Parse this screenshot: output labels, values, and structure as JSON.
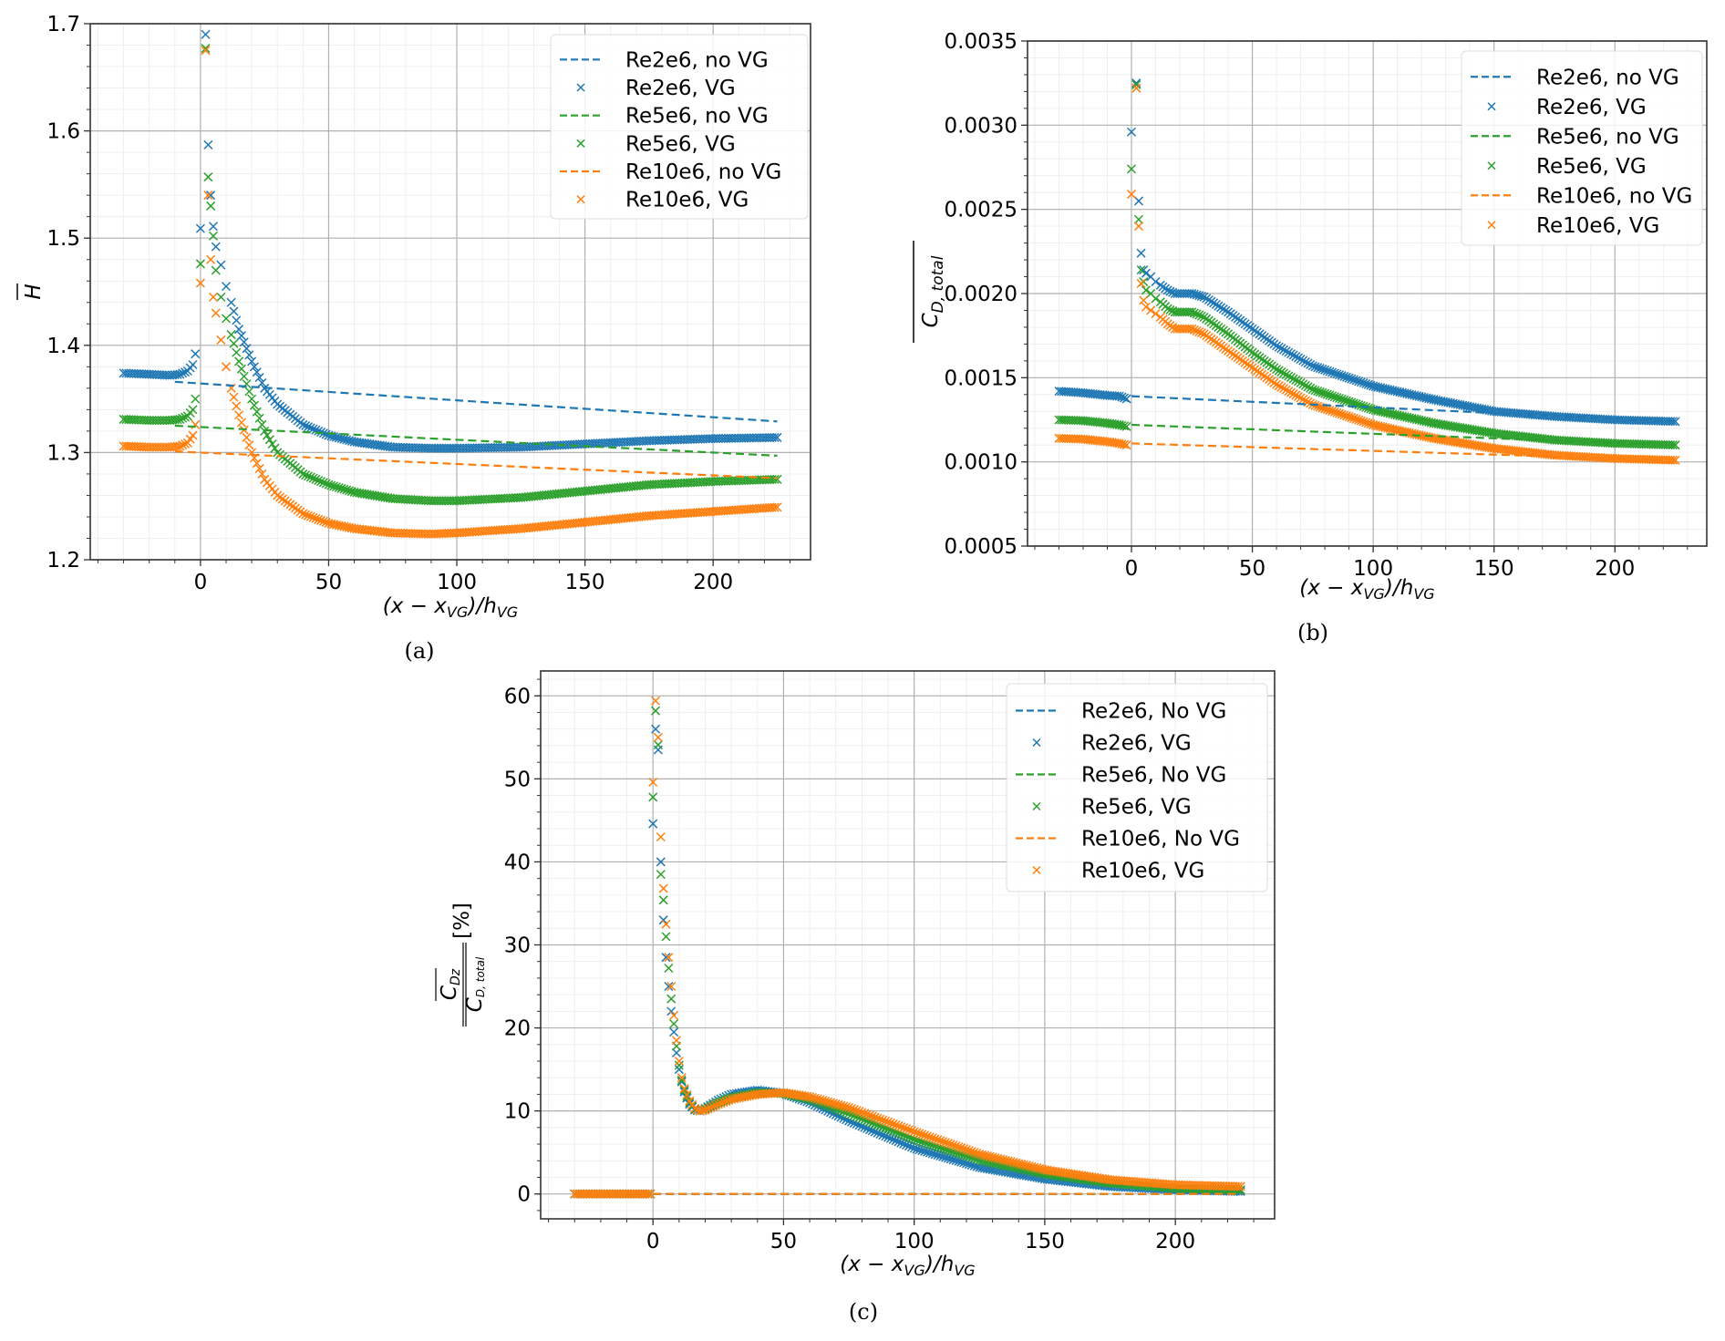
{
  "figure": {
    "colors": {
      "Re2e6": "#1f77b4",
      "Re5e6": "#2ca02c",
      "Re10e6": "#ff7f0e"
    }
  },
  "chart_data": [
    {
      "id": "a",
      "type": "scatter",
      "caption": "(a)",
      "title": "",
      "xlabel": "(x − x_VG)/h_VG",
      "ylabel": "H̄",
      "xlim": [
        -43,
        238
      ],
      "ylim": [
        1.2,
        1.7
      ],
      "xticks": [
        0,
        50,
        100,
        150,
        200
      ],
      "yticks": [
        1.2,
        1.3,
        1.4,
        1.5,
        1.6,
        1.7
      ],
      "ytick_labels": [
        "1.2",
        "1.3",
        "1.4",
        "1.5",
        "1.6",
        "1.7"
      ],
      "grid": true,
      "legend_position": "top-right",
      "series": [
        {
          "name": "Re2e6, no VG",
          "style": "dashed",
          "color_key": "Re2e6",
          "x": [
            -10,
            225
          ],
          "y": [
            1.366,
            1.329
          ]
        },
        {
          "name": "Re2e6, VG",
          "style": "x-marker",
          "color_key": "Re2e6",
          "x": [
            -30,
            -20,
            -12,
            -8,
            -5,
            -3,
            -2,
            0,
            2,
            3,
            4,
            5,
            6,
            8,
            10,
            12,
            15,
            20,
            25,
            30,
            40,
            50,
            60,
            75,
            90,
            100,
            125,
            150,
            175,
            200,
            225
          ],
          "y": [
            1.374,
            1.373,
            1.372,
            1.373,
            1.376,
            1.382,
            1.392,
            1.509,
            1.69,
            1.587,
            1.54,
            1.511,
            1.492,
            1.475,
            1.455,
            1.44,
            1.415,
            1.385,
            1.36,
            1.345,
            1.326,
            1.316,
            1.31,
            1.305,
            1.304,
            1.304,
            1.305,
            1.308,
            1.311,
            1.313,
            1.314
          ]
        },
        {
          "name": "Re5e6, no VG",
          "style": "dashed",
          "color_key": "Re5e6",
          "x": [
            -10,
            225
          ],
          "y": [
            1.325,
            1.297
          ]
        },
        {
          "name": "Re5e6, VG",
          "style": "x-marker",
          "color_key": "Re5e6",
          "x": [
            -30,
            -20,
            -12,
            -8,
            -5,
            -3,
            -2,
            0,
            2,
            3,
            4,
            5,
            6,
            8,
            10,
            12,
            15,
            20,
            25,
            30,
            40,
            50,
            60,
            75,
            90,
            100,
            125,
            150,
            175,
            200,
            225
          ],
          "y": [
            1.331,
            1.33,
            1.33,
            1.331,
            1.334,
            1.34,
            1.35,
            1.476,
            1.677,
            1.557,
            1.53,
            1.502,
            1.47,
            1.445,
            1.425,
            1.41,
            1.385,
            1.35,
            1.32,
            1.3,
            1.28,
            1.27,
            1.263,
            1.257,
            1.255,
            1.255,
            1.258,
            1.264,
            1.27,
            1.273,
            1.275
          ]
        },
        {
          "name": "Re10e6, no VG",
          "style": "dashed",
          "color_key": "Re10e6",
          "x": [
            -10,
            225
          ],
          "y": [
            1.301,
            1.276
          ]
        },
        {
          "name": "Re10e6, VG",
          "style": "x-marker",
          "color_key": "Re10e6",
          "x": [
            -30,
            -20,
            -12,
            -8,
            -5,
            -3,
            -2,
            0,
            2,
            3,
            4,
            5,
            6,
            8,
            10,
            12,
            15,
            20,
            25,
            30,
            40,
            50,
            60,
            75,
            90,
            100,
            125,
            150,
            175,
            200,
            225
          ],
          "y": [
            1.306,
            1.305,
            1.305,
            1.306,
            1.309,
            1.316,
            1.326,
            1.458,
            1.675,
            1.54,
            1.48,
            1.445,
            1.43,
            1.405,
            1.38,
            1.36,
            1.335,
            1.3,
            1.275,
            1.26,
            1.243,
            1.234,
            1.229,
            1.225,
            1.224,
            1.225,
            1.229,
            1.235,
            1.241,
            1.245,
            1.249
          ]
        }
      ]
    },
    {
      "id": "b",
      "type": "scatter",
      "caption": "(b)",
      "title": "",
      "xlabel": "(x − x_VG)/h_VG",
      "ylabel": "C̄_D,total",
      "xlim": [
        -43,
        238
      ],
      "ylim": [
        0.0005,
        0.0035
      ],
      "xticks": [
        0,
        50,
        100,
        150,
        200
      ],
      "yticks": [
        0.0005,
        0.001,
        0.0015,
        0.002,
        0.0025,
        0.003,
        0.0035
      ],
      "ytick_labels": [
        "0.0005",
        "0.0010",
        "0.0015",
        "0.0020",
        "0.0025",
        "0.0030",
        "0.0035"
      ],
      "grid": true,
      "legend_position": "top-right",
      "series": [
        {
          "name": "Re2e6, no VG",
          "style": "dashed",
          "color_key": "Re2e6",
          "x": [
            0,
            225
          ],
          "y": [
            0.00139,
            0.00124
          ]
        },
        {
          "name": "Re2e6, VG",
          "style": "x-marker",
          "color_key": "Re2e6",
          "x": [
            -30,
            -20,
            -10,
            -5,
            -2,
            0,
            2,
            3,
            4,
            5,
            6,
            8,
            10,
            12,
            15,
            18,
            20,
            25,
            30,
            40,
            50,
            60,
            75,
            100,
            125,
            150,
            175,
            200,
            225
          ],
          "y": [
            0.00142,
            0.00141,
            0.001395,
            0.00139,
            0.001375,
            0.00296,
            0.00325,
            0.00255,
            0.00224,
            0.00214,
            0.00212,
            0.0021,
            0.00207,
            0.00205,
            0.00202,
            0.002,
            0.002,
            0.002,
            0.00198,
            0.00189,
            0.00179,
            0.00169,
            0.00157,
            0.00145,
            0.00137,
            0.0013,
            0.00127,
            0.00125,
            0.00124
          ]
        },
        {
          "name": "Re5e6, no VG",
          "style": "dashed",
          "color_key": "Re5e6",
          "x": [
            0,
            225
          ],
          "y": [
            0.00122,
            0.0011
          ]
        },
        {
          "name": "Re5e6, VG",
          "style": "x-marker",
          "color_key": "Re5e6",
          "x": [
            -30,
            -20,
            -10,
            -5,
            -2,
            0,
            2,
            3,
            4,
            5,
            6,
            8,
            10,
            12,
            15,
            18,
            20,
            25,
            30,
            40,
            50,
            60,
            75,
            100,
            125,
            150,
            175,
            200,
            225
          ],
          "y": [
            0.00125,
            0.001245,
            0.00123,
            0.00122,
            0.00121,
            0.00274,
            0.00324,
            0.00244,
            0.00214,
            0.00207,
            0.00202,
            0.002,
            0.00197,
            0.00195,
            0.00191,
            0.00189,
            0.00189,
            0.00189,
            0.00186,
            0.00176,
            0.00165,
            0.00155,
            0.00143,
            0.00131,
            0.00123,
            0.00117,
            0.00113,
            0.00111,
            0.0011
          ]
        },
        {
          "name": "Re10e6, no VG",
          "style": "dashed",
          "color_key": "Re10e6",
          "x": [
            0,
            225
          ],
          "y": [
            0.00111,
            0.00101
          ]
        },
        {
          "name": "Re10e6, VG",
          "style": "x-marker",
          "color_key": "Re10e6",
          "x": [
            -30,
            -20,
            -10,
            -5,
            -2,
            0,
            2,
            3,
            4,
            5,
            6,
            8,
            10,
            12,
            15,
            18,
            20,
            25,
            30,
            40,
            50,
            60,
            75,
            100,
            125,
            150,
            175,
            200,
            225
          ],
          "y": [
            0.00114,
            0.001135,
            0.00112,
            0.00111,
            0.0011,
            0.00259,
            0.00322,
            0.0024,
            0.00206,
            0.00196,
            0.00192,
            0.0019,
            0.00188,
            0.00186,
            0.00182,
            0.00179,
            0.00179,
            0.00179,
            0.00176,
            0.00166,
            0.00156,
            0.00146,
            0.00134,
            0.00122,
            0.00114,
            0.00108,
            0.00104,
            0.00102,
            0.00101
          ]
        }
      ]
    },
    {
      "id": "c",
      "type": "scatter",
      "caption": "(c)",
      "title": "",
      "xlabel": "(x − x_VG)/h_VG",
      "ylabel": "C̄_Dz / C̄_D,total [%]",
      "xlim": [
        -43,
        238
      ],
      "ylim": [
        -3,
        63
      ],
      "xticks": [
        0,
        50,
        100,
        150,
        200
      ],
      "yticks": [
        0,
        10,
        20,
        30,
        40,
        50,
        60
      ],
      "ytick_labels": [
        "0",
        "10",
        "20",
        "30",
        "40",
        "50",
        "60"
      ],
      "grid": true,
      "legend_position": "top-right",
      "series": [
        {
          "name": "Re2e6, No VG",
          "style": "dashed",
          "color_key": "Re2e6",
          "x": [
            0,
            225
          ],
          "y": [
            0,
            0
          ]
        },
        {
          "name": "Re2e6, VG",
          "style": "x-marker",
          "color_key": "Re2e6",
          "x": [
            -30,
            -15,
            -1,
            0,
            1,
            2,
            3,
            4,
            5,
            6,
            7,
            8,
            9,
            10,
            11,
            12,
            14,
            16,
            18,
            20,
            25,
            30,
            40,
            50,
            60,
            75,
            100,
            125,
            150,
            175,
            200,
            225
          ],
          "y": [
            0,
            0,
            0,
            44.6,
            56,
            53.5,
            40,
            33,
            28.5,
            25,
            22,
            19.5,
            17,
            15,
            13.5,
            12.3,
            10.8,
            10.1,
            10.0,
            10.3,
            11.3,
            12.0,
            12.5,
            12.1,
            11.0,
            8.8,
            5.5,
            3.2,
            1.8,
            0.9,
            0.5,
            0.3
          ]
        },
        {
          "name": "Re5e6, No VG",
          "style": "dashed",
          "color_key": "Re5e6",
          "x": [
            0,
            225
          ],
          "y": [
            0,
            0
          ]
        },
        {
          "name": "Re5e6, VG",
          "style": "x-marker",
          "color_key": "Re5e6",
          "x": [
            -30,
            -15,
            -1,
            0,
            1,
            2,
            3,
            4,
            5,
            6,
            7,
            8,
            9,
            10,
            11,
            12,
            14,
            16,
            18,
            20,
            25,
            30,
            40,
            50,
            60,
            75,
            100,
            125,
            150,
            175,
            200,
            225
          ],
          "y": [
            0,
            0,
            0,
            47.8,
            58.2,
            54.1,
            38.5,
            35.4,
            31,
            27.2,
            23.5,
            20.5,
            17.8,
            15.5,
            13.7,
            12.5,
            11,
            10.2,
            10.0,
            10.2,
            11,
            11.6,
            12.2,
            12.1,
            11.4,
            9.7,
            6.6,
            4.1,
            2.4,
            1.3,
            0.7,
            0.5
          ]
        },
        {
          "name": "Re10e6, No VG",
          "style": "dashed",
          "color_key": "Re10e6",
          "x": [
            0,
            225
          ],
          "y": [
            0,
            0
          ]
        },
        {
          "name": "Re10e6, VG",
          "style": "x-marker",
          "color_key": "Re10e6",
          "x": [
            -30,
            -15,
            -1,
            0,
            1,
            2,
            3,
            4,
            5,
            6,
            7,
            8,
            9,
            10,
            11,
            12,
            14,
            16,
            18,
            20,
            25,
            30,
            40,
            50,
            60,
            75,
            100,
            125,
            150,
            175,
            200,
            225
          ],
          "y": [
            0,
            0,
            0,
            49.6,
            59.4,
            55,
            43,
            36.8,
            32.5,
            28.5,
            25,
            21.5,
            18.5,
            16,
            14,
            12.7,
            11.2,
            10.3,
            10.0,
            10.1,
            10.8,
            11.4,
            12.0,
            12.2,
            11.7,
            10.4,
            7.5,
            4.8,
            2.9,
            1.7,
            1.1,
            0.9
          ]
        }
      ]
    }
  ]
}
